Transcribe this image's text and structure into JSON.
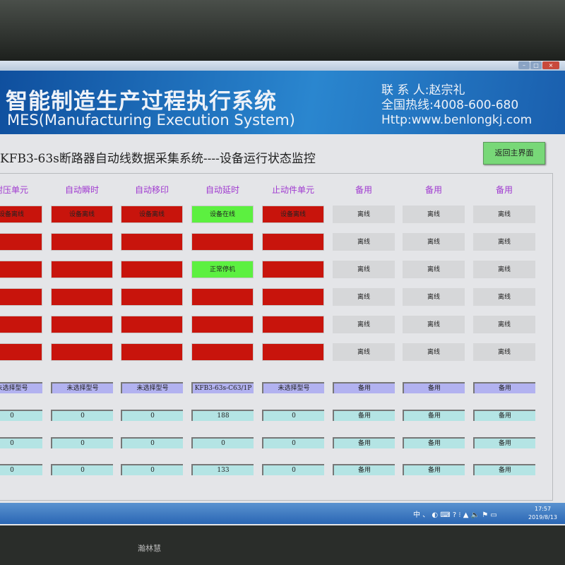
{
  "window": {
    "controls": [
      "–",
      "□",
      "×"
    ]
  },
  "banner": {
    "title_cn": "智能制造生产过程执行系统",
    "title_en": "MES(Manufacturing Execution System)",
    "contact": "联 系 人:赵宗礼",
    "hotline": "全国热线:4008-600-680",
    "website": "Http:www.benlongkj.com"
  },
  "page": {
    "title": "KFB3-63s断路器自动线数据采集系统----设备运行状态监控",
    "back_button": "返回主界面"
  },
  "columns": [
    "耐压单元",
    "自动瞬时",
    "自动移印",
    "自动延时",
    "止动件单元",
    "备用",
    "备用",
    "备用"
  ],
  "status_rows": [
    [
      {
        "text": "设备离线",
        "state": "red"
      },
      {
        "text": "设备离线",
        "state": "red"
      },
      {
        "text": "设备离线",
        "state": "red"
      },
      {
        "text": "设备在线",
        "state": "green"
      },
      {
        "text": "设备离线",
        "state": "red"
      },
      {
        "text": "离线",
        "state": "gray"
      },
      {
        "text": "离线",
        "state": "gray"
      },
      {
        "text": "离线",
        "state": "gray"
      }
    ],
    [
      {
        "text": "",
        "state": "red"
      },
      {
        "text": "",
        "state": "red"
      },
      {
        "text": "",
        "state": "red"
      },
      {
        "text": "",
        "state": "red"
      },
      {
        "text": "",
        "state": "red"
      },
      {
        "text": "离线",
        "state": "gray"
      },
      {
        "text": "离线",
        "state": "gray"
      },
      {
        "text": "离线",
        "state": "gray"
      }
    ],
    [
      {
        "text": "",
        "state": "red"
      },
      {
        "text": "",
        "state": "red"
      },
      {
        "text": "",
        "state": "red"
      },
      {
        "text": "正常停机",
        "state": "green"
      },
      {
        "text": "",
        "state": "red"
      },
      {
        "text": "离线",
        "state": "gray"
      },
      {
        "text": "离线",
        "state": "gray"
      },
      {
        "text": "离线",
        "state": "gray"
      }
    ],
    [
      {
        "text": "",
        "state": "red"
      },
      {
        "text": "",
        "state": "red"
      },
      {
        "text": "",
        "state": "red"
      },
      {
        "text": "",
        "state": "red"
      },
      {
        "text": "",
        "state": "red"
      },
      {
        "text": "离线",
        "state": "gray"
      },
      {
        "text": "离线",
        "state": "gray"
      },
      {
        "text": "离线",
        "state": "gray"
      }
    ],
    [
      {
        "text": "",
        "state": "red"
      },
      {
        "text": "",
        "state": "red"
      },
      {
        "text": "",
        "state": "red"
      },
      {
        "text": "",
        "state": "red"
      },
      {
        "text": "",
        "state": "red"
      },
      {
        "text": "离线",
        "state": "gray"
      },
      {
        "text": "离线",
        "state": "gray"
      },
      {
        "text": "离线",
        "state": "gray"
      }
    ],
    [
      {
        "text": "",
        "state": "red"
      },
      {
        "text": "",
        "state": "red"
      },
      {
        "text": "",
        "state": "red"
      },
      {
        "text": "",
        "state": "red"
      },
      {
        "text": "",
        "state": "red"
      },
      {
        "text": "离线",
        "state": "gray"
      },
      {
        "text": "离线",
        "state": "gray"
      },
      {
        "text": "离线",
        "state": "gray"
      }
    ]
  ],
  "model_row": [
    "未选择型号",
    "未选择型号",
    "未选择型号",
    "KFB3-63s-C63/1P",
    "未选择型号",
    "备用",
    "备用",
    "备用"
  ],
  "value_rows": [
    [
      "0",
      "0",
      "0",
      "188",
      "0",
      "备用",
      "备用",
      "备用"
    ],
    [
      "0",
      "0",
      "0",
      "0",
      "0",
      "备用",
      "备用",
      "备用"
    ],
    [
      "0",
      "0",
      "0",
      "133",
      "0",
      "备用",
      "备用",
      "备用"
    ]
  ],
  "colors": {
    "offline_red": "#c8140c",
    "online_green": "#5cf040",
    "inactive_gray": "#d6d7d9",
    "model_purple": "#b2b2f0",
    "value_cyan": "#b4e4e4",
    "header_purple": "#a03ad0"
  },
  "taskbar": {
    "tray": "中 、 ◐ ⌨ ? ⁝ ▲ 🔈 ⚑ ▭",
    "time": "17:57",
    "date": "2019/8/13"
  },
  "monitor": {
    "brand": "瀚林慧"
  }
}
